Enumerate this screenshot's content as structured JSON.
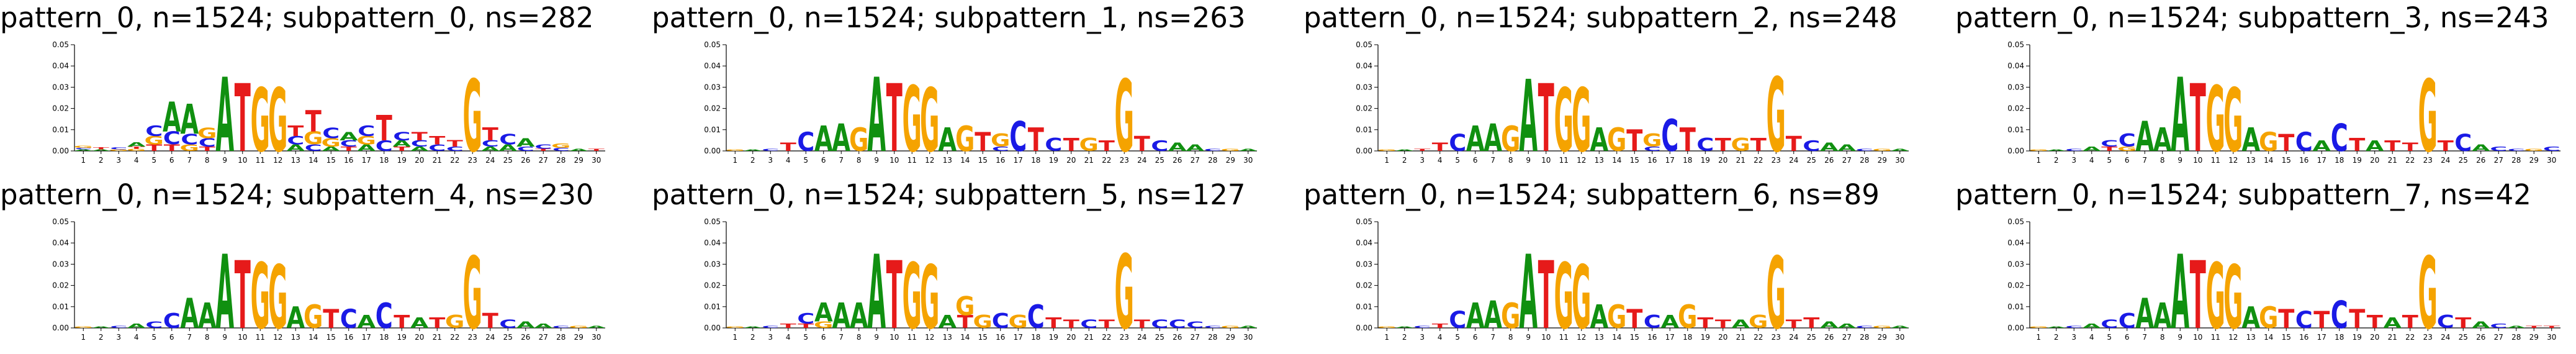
{
  "colors": {
    "A": "#109010",
    "C": "#1a1ae6",
    "G": "#f5a300",
    "T": "#e61a1a"
  },
  "chart_data": [
    {
      "type": "sequence-logo",
      "title": "pattern_0, n=1524; subpattern_0, ns=282",
      "positions": [
        1,
        2,
        3,
        4,
        5,
        6,
        7,
        8,
        9,
        10,
        11,
        12,
        13,
        14,
        15,
        16,
        17,
        18,
        19,
        20,
        21,
        22,
        23,
        24,
        25,
        26,
        27,
        28,
        29,
        30
      ],
      "ylim": [
        0,
        0.05
      ],
      "yticks": [
        "0.00",
        "0.01",
        "0.02",
        "0.03",
        "0.04",
        "0.05"
      ],
      "columns": [
        {
          "G": 0.001,
          "C": 0.0008,
          "A": 0.0007
        },
        {
          "T": 0.001,
          "A": 0.0008
        },
        {
          "C": 0.001,
          "G": 0.0008
        },
        {
          "A": 0.002,
          "G": 0.001,
          "T": 0.001
        },
        {
          "T": 0.003,
          "G": 0.004,
          "C": 0.005
        },
        {
          "T": 0.003,
          "C": 0.006,
          "A": 0.014
        },
        {
          "G": 0.003,
          "C": 0.005,
          "A": 0.014
        },
        {
          "T": 0.002,
          "C": 0.004,
          "G": 0.005
        },
        {
          "A": 0.035
        },
        {
          "T": 0.032
        },
        {
          "G": 0.03
        },
        {
          "G": 0.03
        },
        {
          "A": 0.003,
          "C": 0.004,
          "T": 0.005
        },
        {
          "C": 0.003,
          "G": 0.006,
          "T": 0.01
        },
        {
          "A": 0.002,
          "G": 0.004,
          "C": 0.005
        },
        {
          "T": 0.002,
          "C": 0.003,
          "A": 0.004
        },
        {
          "A": 0.003,
          "G": 0.004,
          "C": 0.005
        },
        {
          "C": 0.005,
          "T": 0.012
        },
        {
          "T": 0.002,
          "A": 0.003,
          "C": 0.004
        },
        {
          "A": 0.002,
          "C": 0.003,
          "T": 0.004
        },
        {
          "C": 0.003,
          "T": 0.004
        },
        {
          "C": 0.002,
          "T": 0.003
        },
        {
          "G": 0.034
        },
        {
          "A": 0.002,
          "C": 0.003,
          "T": 0.006
        },
        {
          "A": 0.003,
          "C": 0.005
        },
        {
          "C": 0.002,
          "A": 0.004
        },
        {
          "T": 0.001,
          "C": 0.002
        },
        {
          "C": 0.0015,
          "G": 0.002
        },
        {
          "A": 0.001
        },
        {
          "T": 0.001
        }
      ]
    },
    {
      "type": "sequence-logo",
      "title": "pattern_0, n=1524; subpattern_1, ns=263",
      "positions": [
        1,
        2,
        3,
        4,
        5,
        6,
        7,
        8,
        9,
        10,
        11,
        12,
        13,
        14,
        15,
        16,
        17,
        18,
        19,
        20,
        21,
        22,
        23,
        24,
        25,
        26,
        27,
        28,
        29,
        30
      ],
      "ylim": [
        0,
        0.05
      ],
      "yticks": [
        "0.00",
        "0.01",
        "0.02",
        "0.03",
        "0.04",
        "0.05"
      ],
      "columns": [
        {
          "G": 0.0008
        },
        {
          "A": 0.0008
        },
        {
          "C": 0.001
        },
        {
          "T": 0.004
        },
        {
          "C": 0.009
        },
        {
          "A": 0.012
        },
        {
          "A": 0.013
        },
        {
          "G": 0.011
        },
        {
          "A": 0.035
        },
        {
          "T": 0.032
        },
        {
          "G": 0.031
        },
        {
          "G": 0.03
        },
        {
          "A": 0.011
        },
        {
          "G": 0.012
        },
        {
          "T": 0.009
        },
        {
          "C": 0.002,
          "G": 0.006
        },
        {
          "C": 0.014
        },
        {
          "T": 0.011
        },
        {
          "C": 0.006
        },
        {
          "T": 0.006
        },
        {
          "G": 0.006
        },
        {
          "T": 0.005
        },
        {
          "G": 0.034
        },
        {
          "T": 0.007
        },
        {
          "C": 0.005
        },
        {
          "A": 0.004
        },
        {
          "A": 0.003
        },
        {
          "C": 0.001
        },
        {
          "G": 0.001
        },
        {
          "A": 0.001
        }
      ]
    },
    {
      "type": "sequence-logo",
      "title": "pattern_0, n=1524; subpattern_2, ns=248",
      "positions": [
        1,
        2,
        3,
        4,
        5,
        6,
        7,
        8,
        9,
        10,
        11,
        12,
        13,
        14,
        15,
        16,
        17,
        18,
        19,
        20,
        21,
        22,
        23,
        24,
        25,
        26,
        27,
        28,
        29,
        30
      ],
      "ylim": [
        0,
        0.05
      ],
      "yticks": [
        "0.00",
        "0.01",
        "0.02",
        "0.03",
        "0.04",
        "0.05"
      ],
      "columns": [
        {
          "G": 0.0008
        },
        {
          "A": 0.0008
        },
        {
          "T": 0.001
        },
        {
          "T": 0.004
        },
        {
          "C": 0.008
        },
        {
          "A": 0.012
        },
        {
          "A": 0.013
        },
        {
          "G": 0.012
        },
        {
          "A": 0.034
        },
        {
          "T": 0.032
        },
        {
          "G": 0.03
        },
        {
          "G": 0.03
        },
        {
          "A": 0.011
        },
        {
          "G": 0.011
        },
        {
          "T": 0.01
        },
        {
          "C": 0.002,
          "G": 0.006
        },
        {
          "C": 0.015
        },
        {
          "T": 0.011
        },
        {
          "C": 0.006
        },
        {
          "T": 0.006
        },
        {
          "G": 0.006
        },
        {
          "T": 0.006
        },
        {
          "G": 0.035
        },
        {
          "T": 0.007
        },
        {
          "C": 0.005
        },
        {
          "A": 0.004
        },
        {
          "A": 0.003
        },
        {
          "C": 0.001
        },
        {
          "G": 0.001
        },
        {
          "A": 0.001
        }
      ]
    },
    {
      "type": "sequence-logo",
      "title": "pattern_0, n=1524; subpattern_3, ns=243",
      "positions": [
        1,
        2,
        3,
        4,
        5,
        6,
        7,
        8,
        9,
        10,
        11,
        12,
        13,
        14,
        15,
        16,
        17,
        18,
        19,
        20,
        21,
        22,
        23,
        24,
        25,
        26,
        27,
        28,
        29,
        30
      ],
      "ylim": [
        0,
        0.05
      ],
      "yticks": [
        "0.00",
        "0.01",
        "0.02",
        "0.03",
        "0.04",
        "0.05"
      ],
      "columns": [
        {
          "G": 0.0008
        },
        {
          "A": 0.0008
        },
        {
          "C": 0.001
        },
        {
          "A": 0.002
        },
        {
          "T": 0.002,
          "C": 0.003
        },
        {
          "G": 0.002,
          "C": 0.006
        },
        {
          "A": 0.014
        },
        {
          "A": 0.011
        },
        {
          "A": 0.035
        },
        {
          "T": 0.032
        },
        {
          "G": 0.031
        },
        {
          "G": 0.03
        },
        {
          "A": 0.011
        },
        {
          "G": 0.009
        },
        {
          "T": 0.008
        },
        {
          "C": 0.009
        },
        {
          "A": 0.005
        },
        {
          "C": 0.013
        },
        {
          "T": 0.006
        },
        {
          "A": 0.005
        },
        {
          "T": 0.005
        },
        {
          "T": 0.004
        },
        {
          "G": 0.034
        },
        {
          "T": 0.005
        },
        {
          "C": 0.008
        },
        {
          "A": 0.003
        },
        {
          "C": 0.002
        },
        {
          "C": 0.001
        },
        {
          "G": 0.001
        },
        {
          "C": 0.002
        }
      ]
    },
    {
      "type": "sequence-logo",
      "title": "pattern_0, n=1524; subpattern_4, ns=230",
      "positions": [
        1,
        2,
        3,
        4,
        5,
        6,
        7,
        8,
        9,
        10,
        11,
        12,
        13,
        14,
        15,
        16,
        17,
        18,
        19,
        20,
        21,
        22,
        23,
        24,
        25,
        26,
        27,
        28,
        29,
        30
      ],
      "ylim": [
        0,
        0.05
      ],
      "yticks": [
        "0.00",
        "0.01",
        "0.02",
        "0.03",
        "0.04",
        "0.05"
      ],
      "columns": [
        {
          "G": 0.0008
        },
        {
          "A": 0.0008
        },
        {
          "C": 0.001
        },
        {
          "A": 0.002
        },
        {
          "C": 0.003
        },
        {
          "C": 0.007
        },
        {
          "A": 0.014
        },
        {
          "A": 0.012
        },
        {
          "A": 0.035
        },
        {
          "T": 0.032
        },
        {
          "G": 0.031
        },
        {
          "G": 0.03
        },
        {
          "A": 0.01
        },
        {
          "G": 0.011
        },
        {
          "T": 0.009
        },
        {
          "C": 0.009
        },
        {
          "A": 0.006
        },
        {
          "C": 0.012
        },
        {
          "T": 0.006
        },
        {
          "A": 0.005
        },
        {
          "T": 0.005
        },
        {
          "G": 0.006
        },
        {
          "G": 0.034
        },
        {
          "T": 0.007
        },
        {
          "C": 0.004
        },
        {
          "A": 0.003
        },
        {
          "A": 0.002
        },
        {
          "C": 0.001
        },
        {
          "G": 0.001
        },
        {
          "A": 0.001
        }
      ]
    },
    {
      "type": "sequence-logo",
      "title": "pattern_0, n=1524; subpattern_5, ns=127",
      "positions": [
        1,
        2,
        3,
        4,
        5,
        6,
        7,
        8,
        9,
        10,
        11,
        12,
        13,
        14,
        15,
        16,
        17,
        18,
        19,
        20,
        21,
        22,
        23,
        24,
        25,
        26,
        27,
        28,
        29,
        30
      ],
      "ylim": [
        0,
        0.05
      ],
      "yticks": [
        "0.00",
        "0.01",
        "0.02",
        "0.03",
        "0.04",
        "0.05"
      ],
      "columns": [
        {
          "G": 0.0008
        },
        {
          "A": 0.0008
        },
        {
          "C": 0.001
        },
        {
          "T": 0.002
        },
        {
          "T": 0.002,
          "C": 0.005
        },
        {
          "G": 0.003,
          "A": 0.009
        },
        {
          "A": 0.012
        },
        {
          "A": 0.012
        },
        {
          "A": 0.035
        },
        {
          "T": 0.032
        },
        {
          "G": 0.031
        },
        {
          "G": 0.03
        },
        {
          "A": 0.006
        },
        {
          "T": 0.006,
          "G": 0.009
        },
        {
          "G": 0.006
        },
        {
          "C": 0.007
        },
        {
          "G": 0.006
        },
        {
          "C": 0.011
        },
        {
          "T": 0.005
        },
        {
          "T": 0.004
        },
        {
          "C": 0.004
        },
        {
          "T": 0.004
        },
        {
          "G": 0.035
        },
        {
          "T": 0.004
        },
        {
          "C": 0.004
        },
        {
          "C": 0.004
        },
        {
          "C": 0.003
        },
        {
          "C": 0.001
        },
        {
          "G": 0.001
        },
        {
          "A": 0.001
        }
      ]
    },
    {
      "type": "sequence-logo",
      "title": "pattern_0, n=1524; subpattern_6, ns=89",
      "positions": [
        1,
        2,
        3,
        4,
        5,
        6,
        7,
        8,
        9,
        10,
        11,
        12,
        13,
        14,
        15,
        16,
        17,
        18,
        19,
        20,
        21,
        22,
        23,
        24,
        25,
        26,
        27,
        28,
        29,
        30
      ],
      "ylim": [
        0,
        0.05
      ],
      "yticks": [
        "0.00",
        "0.01",
        "0.02",
        "0.03",
        "0.04",
        "0.05"
      ],
      "columns": [
        {
          "G": 0.0008
        },
        {
          "A": 0.0008
        },
        {
          "C": 0.001
        },
        {
          "T": 0.002
        },
        {
          "C": 0.008
        },
        {
          "A": 0.012
        },
        {
          "A": 0.013
        },
        {
          "G": 0.012
        },
        {
          "A": 0.035
        },
        {
          "T": 0.032
        },
        {
          "G": 0.031
        },
        {
          "G": 0.03
        },
        {
          "A": 0.011
        },
        {
          "G": 0.011
        },
        {
          "T": 0.009
        },
        {
          "C": 0.006
        },
        {
          "A": 0.006
        },
        {
          "G": 0.011
        },
        {
          "T": 0.005
        },
        {
          "T": 0.004
        },
        {
          "A": 0.004
        },
        {
          "G": 0.006
        },
        {
          "G": 0.034
        },
        {
          "T": 0.004
        },
        {
          "T": 0.005
        },
        {
          "A": 0.003
        },
        {
          "A": 0.002
        },
        {
          "C": 0.001
        },
        {
          "G": 0.001
        },
        {
          "A": 0.001
        }
      ]
    },
    {
      "type": "sequence-logo",
      "title": "pattern_0, n=1524; subpattern_7, ns=42",
      "positions": [
        1,
        2,
        3,
        4,
        5,
        6,
        7,
        8,
        9,
        10,
        11,
        12,
        13,
        14,
        15,
        16,
        17,
        18,
        19,
        20,
        21,
        22,
        23,
        24,
        25,
        26,
        27,
        28,
        29,
        30
      ],
      "ylim": [
        0,
        0.05
      ],
      "yticks": [
        "0.00",
        "0.01",
        "0.02",
        "0.03",
        "0.04",
        "0.05"
      ],
      "columns": [
        {
          "G": 0.0008
        },
        {
          "A": 0.0008
        },
        {
          "C": 0.001
        },
        {
          "A": 0.002
        },
        {
          "C": 0.004
        },
        {
          "C": 0.007
        },
        {
          "A": 0.014
        },
        {
          "A": 0.012
        },
        {
          "A": 0.035
        },
        {
          "T": 0.032
        },
        {
          "G": 0.031
        },
        {
          "G": 0.03
        },
        {
          "A": 0.01
        },
        {
          "G": 0.01
        },
        {
          "T": 0.009
        },
        {
          "C": 0.008
        },
        {
          "T": 0.008
        },
        {
          "C": 0.013
        },
        {
          "T": 0.009
        },
        {
          "T": 0.006
        },
        {
          "A": 0.005
        },
        {
          "T": 0.006
        },
        {
          "G": 0.034
        },
        {
          "C": 0.006
        },
        {
          "T": 0.005
        },
        {
          "A": 0.003
        },
        {
          "C": 0.002
        },
        {
          "A": 0.001
        },
        {
          "T": 0.001
        },
        {
          "T": 0.001
        }
      ]
    }
  ]
}
